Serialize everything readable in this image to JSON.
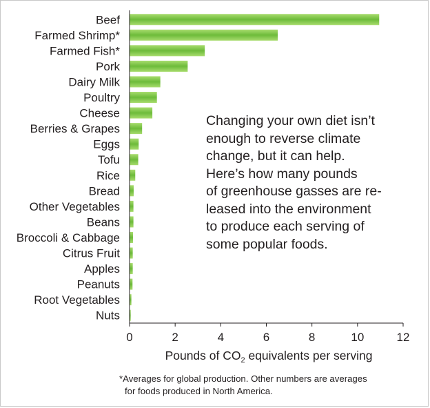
{
  "chart_data": {
    "type": "bar",
    "orientation": "horizontal",
    "categories": [
      "Beef",
      "Farmed Shrimp*",
      "Farmed Fish*",
      "Pork",
      "Dairy Milk",
      "Poultry",
      "Cheese",
      "Berries & Grapes",
      "Eggs",
      "Tofu",
      "Rice",
      "Bread",
      "Other Vegetables",
      "Beans",
      "Broccoli & Cabbage",
      "Citrus Fruit",
      "Apples",
      "Peanuts",
      "Root Vegetables",
      "Nuts"
    ],
    "values": [
      10.95,
      6.5,
      3.3,
      2.55,
      1.35,
      1.2,
      1.0,
      0.55,
      0.4,
      0.38,
      0.25,
      0.18,
      0.17,
      0.17,
      0.15,
      0.14,
      0.14,
      0.13,
      0.08,
      0.05
    ],
    "xlim": [
      0,
      12
    ],
    "xticks": [
      "0",
      "2",
      "4",
      "6",
      "8",
      "10",
      "12"
    ],
    "xlabel_pre": "Pounds of CO",
    "xlabel_sub": "2",
    "xlabel_post": " equivalents per serving",
    "bar_color_light": "#a8dc6e",
    "bar_color_dark": "#6dbb3a",
    "grid": false
  },
  "annotation": {
    "lines": [
      "Changing your own diet isn’t",
      "enough to reverse climate",
      "change, but it can help.",
      "Here’s how many pounds",
      "of greenhouse gasses are re-",
      "leased into the environment",
      "to produce each serving of",
      "some popular foods."
    ]
  },
  "footnote": {
    "line1": "*Averages for global production. Other numbers are averages",
    "line2": "for foods produced in North America."
  }
}
